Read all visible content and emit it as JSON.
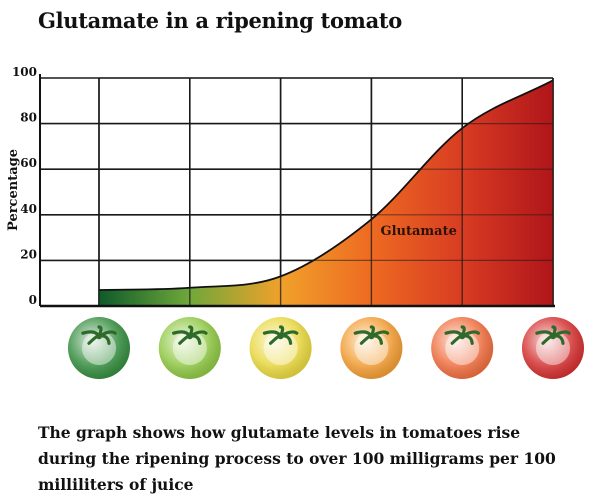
{
  "title": "Glutamate in a ripening tomato",
  "caption": "The graph shows how glutamate levels in tomatoes rise during the ripening process to over 100 milligrams per 100 milliliters of juice",
  "chart_data": {
    "type": "area",
    "title": "Glutamate in a ripening tomato",
    "xlabel": "",
    "ylabel": "Percentage",
    "ylim": [
      0,
      100
    ],
    "yticks": [
      "0",
      "20",
      "40",
      "60",
      "80",
      "100"
    ],
    "grid": true,
    "x": [
      0,
      1,
      2,
      3,
      4,
      5
    ],
    "series": [
      {
        "name": "Glutamate",
        "values": [
          7,
          8,
          13,
          38,
          78,
          99
        ]
      }
    ],
    "annotations": [
      {
        "text": "Glutamate",
        "x": 3.1,
        "y": 28
      }
    ],
    "ripeness_stage_colors": [
      "#2f8a3a",
      "#8cc63f",
      "#e8d63a",
      "#f29a2e",
      "#ef6a3a",
      "#d32a2a"
    ],
    "gradient_colors": [
      "#0f5a2a",
      "#6fa83a",
      "#f0a12a",
      "#ee6a22",
      "#d83c22",
      "#b0151a"
    ],
    "x_markers": "tomato-icons"
  }
}
